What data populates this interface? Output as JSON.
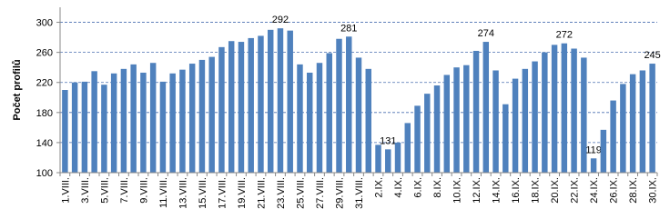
{
  "chart_data": {
    "type": "bar",
    "y_label": "Počet profilů",
    "categories": [
      "1.VIII.",
      null,
      "3.VIII.",
      null,
      "5.VIII.",
      null,
      "7.VIII.",
      null,
      "9.VIII.",
      null,
      "11.VIII.",
      null,
      "13.VIII.",
      null,
      "15.VIII.",
      null,
      "17.VIII.",
      null,
      "19.VIII.",
      null,
      "21.VIII.",
      null,
      "23.VIII.",
      null,
      "25.VIII.",
      null,
      "27.VIII.",
      null,
      "29.VIII.",
      null,
      "31.VIII.",
      null,
      "2.IX.",
      null,
      "4.IX.",
      null,
      "6.IX.",
      null,
      "8.IX.",
      null,
      "10.IX.",
      null,
      "12.IX.",
      null,
      "14.IX.",
      null,
      "16.IX.",
      null,
      "18.IX.",
      null,
      "20.IX.",
      null,
      "22.IX.",
      null,
      "24.IX.",
      null,
      "26.IX.",
      null,
      "28.IX.",
      null,
      "30.IX."
    ],
    "values": [
      210,
      220,
      221,
      235,
      217,
      232,
      238,
      244,
      233,
      246,
      221,
      232,
      237,
      245,
      250,
      254,
      267,
      275,
      274,
      279,
      282,
      290,
      292,
      289,
      244,
      233,
      246,
      259,
      278,
      281,
      253,
      238,
      137,
      131,
      140,
      166,
      189,
      205,
      216,
      230,
      240,
      243,
      262,
      274,
      236,
      191,
      225,
      238,
      248,
      260,
      270,
      272,
      265,
      253,
      119,
      157,
      196,
      218,
      231,
      236,
      245
    ],
    "value_labels": [
      null,
      null,
      null,
      null,
      null,
      null,
      null,
      null,
      null,
      null,
      null,
      null,
      null,
      null,
      null,
      null,
      null,
      null,
      null,
      null,
      null,
      null,
      "292",
      null,
      null,
      null,
      null,
      null,
      null,
      "281",
      null,
      null,
      null,
      "131",
      null,
      null,
      null,
      null,
      null,
      null,
      null,
      null,
      null,
      "274",
      null,
      null,
      null,
      null,
      null,
      null,
      null,
      "272",
      null,
      null,
      "119",
      null,
      null,
      null,
      null,
      null,
      "245"
    ],
    "color": "#4f81bd",
    "ylim": [
      100,
      320
    ],
    "yticks": [
      100,
      140,
      180,
      220,
      260,
      300
    ],
    "grid": true
  }
}
